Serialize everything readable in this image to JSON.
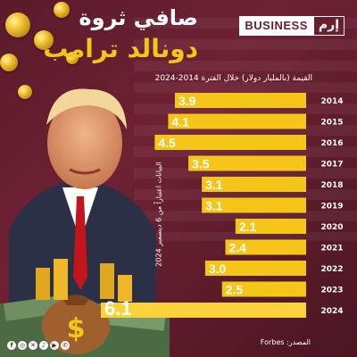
{
  "title_line1": "صافي ثروة",
  "title_line2": "دونالد ترامب",
  "brand": {
    "business": "BUSINESS",
    "logo": "إرم"
  },
  "subtitle": "القيمة (بالمليار دولار) خلال الفترة 2014-2024",
  "note": "البيانات اعتباراً من 6 ديسمبر 2024",
  "source": "المصدر: Forbes",
  "socials": [
    "f",
    "◎",
    "✕",
    "♪",
    "▶",
    "✆"
  ],
  "colors": {
    "bar": "#f5c518",
    "bar_last": "#fbd23a",
    "background": "#5a1a2a",
    "accent": "#f5c518"
  },
  "chart_data": {
    "type": "bar",
    "orientation": "horizontal",
    "categories": [
      "2014",
      "2015",
      "2016",
      "2017",
      "2018",
      "2019",
      "2020",
      "2021",
      "2022",
      "2023",
      "2024"
    ],
    "values": [
      3.9,
      4.1,
      4.5,
      3.5,
      3.1,
      3.1,
      2.1,
      2.4,
      3.0,
      2.5,
      6.1
    ],
    "ylabel": "القيمة (بالمليار دولار)",
    "grid": false
  }
}
